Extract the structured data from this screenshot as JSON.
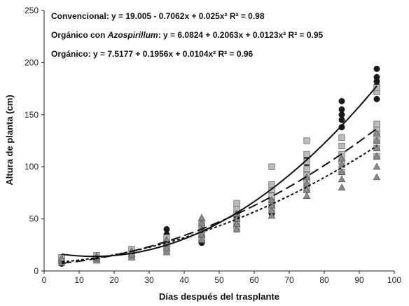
{
  "chart_data": {
    "type": "scatter",
    "title": "",
    "xlabel": "Días después del trasplante",
    "ylabel": "Altura de planta (cm)",
    "xlim": [
      0,
      100
    ],
    "ylim": [
      0,
      250
    ],
    "xticks": [
      0,
      10,
      20,
      30,
      40,
      50,
      60,
      70,
      80,
      90,
      100
    ],
    "yticks": [
      0,
      50,
      100,
      150,
      200,
      250
    ],
    "grid": false,
    "legend": "none",
    "equations": [
      {
        "id": "convencional",
        "label": "Convencional",
        "text": ": y = 19.005 - 0.7062x + 0.025x²  R² = 0.98"
      },
      {
        "id": "azospirillum",
        "label_pre": "Orgánico con ",
        "label_it": "Azospirillum",
        "text": ": y = 6.0824 + 0.2063x + 0.0123x² R² = 0.95"
      },
      {
        "id": "organico",
        "label": "Orgánico",
        "text": ": y = 7.5177 + 0.1956x + 0.0104x²  R² = 0.96"
      }
    ],
    "series": [
      {
        "id": "convencional",
        "marker": "circle",
        "color": "#1a1a1a",
        "line": "solid",
        "coef": [
          19.005,
          -0.7062,
          0.025
        ],
        "x": [
          5,
          15,
          25,
          35,
          45,
          55,
          65,
          75,
          85,
          95
        ],
        "y": [
          [
            7,
            9,
            10,
            11
          ],
          [
            11,
            12,
            13,
            14
          ],
          [
            15,
            17,
            19,
            21
          ],
          [
            22,
            26,
            30,
            35,
            40
          ],
          [
            27,
            31,
            36,
            40,
            44
          ],
          [
            40,
            45,
            52,
            58,
            63
          ],
          [
            55,
            62,
            70,
            75,
            81
          ],
          [
            85,
            95,
            103,
            108,
            112
          ],
          [
            138,
            145,
            150,
            155,
            163
          ],
          [
            165,
            172,
            178,
            182,
            186,
            194
          ]
        ]
      },
      {
        "id": "azospirillum",
        "marker": "square",
        "color": "#bdbdbd",
        "line": "dashed",
        "coef": [
          6.0824,
          0.2063,
          0.0123
        ],
        "x": [
          5,
          15,
          25,
          35,
          45,
          55,
          65,
          75,
          85,
          95
        ],
        "y": [
          [
            9,
            11,
            12,
            13
          ],
          [
            12,
            14,
            15
          ],
          [
            15,
            18,
            21
          ],
          [
            20,
            24,
            28,
            32
          ],
          [
            30,
            35,
            40,
            45
          ],
          [
            42,
            48,
            55,
            60,
            65
          ],
          [
            60,
            66,
            72,
            78,
            83,
            100
          ],
          [
            78,
            85,
            92,
            98,
            105,
            112,
            125
          ],
          [
            95,
            105,
            112,
            120,
            128
          ],
          [
            110,
            118,
            125,
            132,
            137,
            141,
            172,
            176
          ]
        ]
      },
      {
        "id": "organico",
        "marker": "triangle",
        "color": "#8c8c8c",
        "line": "dotted",
        "coef": [
          7.5177,
          0.1956,
          0.0104
        ],
        "x": [
          5,
          15,
          25,
          35,
          45,
          55,
          65,
          75,
          85,
          95
        ],
        "y": [
          [
            8,
            10,
            12
          ],
          [
            10,
            12,
            14
          ],
          [
            13,
            16,
            19
          ],
          [
            18,
            22,
            26,
            30
          ],
          [
            30,
            35,
            40,
            46,
            51
          ],
          [
            40,
            45,
            50,
            55
          ],
          [
            53,
            58,
            63,
            68
          ],
          [
            72,
            78,
            84,
            90
          ],
          [
            80,
            88,
            95,
            102,
            108
          ],
          [
            90,
            100,
            110,
            118,
            125,
            132
          ]
        ]
      }
    ]
  }
}
